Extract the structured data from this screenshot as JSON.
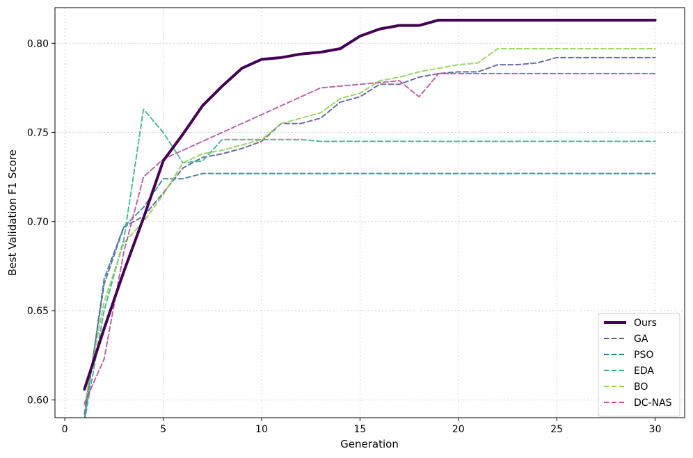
{
  "chart_data": {
    "type": "line",
    "xlabel": "Generation",
    "ylabel": "Best Validation F1 Score",
    "xlim": [
      -0.5,
      31.5
    ],
    "ylim": [
      0.59,
      0.82
    ],
    "xticks": [
      0,
      5,
      10,
      15,
      20,
      25,
      30
    ],
    "yticks": [
      0.6,
      0.65,
      0.7,
      0.75,
      0.8
    ],
    "xtick_labels": [
      "0",
      "5",
      "10",
      "15",
      "20",
      "25",
      "30"
    ],
    "ytick_labels": [
      "0.60",
      "0.65",
      "0.70",
      "0.75",
      "0.80"
    ],
    "grid": true,
    "legend_position": "lower-right",
    "x": [
      1,
      2,
      3,
      4,
      5,
      6,
      7,
      8,
      9,
      10,
      11,
      12,
      13,
      14,
      15,
      16,
      17,
      18,
      19,
      20,
      21,
      22,
      23,
      24,
      25,
      26,
      27,
      28,
      29,
      30
    ],
    "series": [
      {
        "name": "Ours",
        "color": "#440154",
        "style": "solid",
        "values": [
          0.606,
          0.64,
          0.672,
          0.702,
          0.734,
          0.749,
          0.765,
          0.776,
          0.786,
          0.791,
          0.792,
          0.794,
          0.795,
          0.797,
          0.804,
          0.808,
          0.81,
          0.81,
          0.813,
          0.813,
          0.813,
          0.813,
          0.813,
          0.813,
          0.813,
          0.813,
          0.813,
          0.813,
          0.813,
          0.813
        ]
      },
      {
        "name": "GA",
        "color": "#5a5d96",
        "style": "dashed",
        "values": [
          0.592,
          0.665,
          0.697,
          0.703,
          0.716,
          0.73,
          0.736,
          0.738,
          0.741,
          0.745,
          0.755,
          0.755,
          0.758,
          0.767,
          0.77,
          0.777,
          0.777,
          0.781,
          0.783,
          0.784,
          0.784,
          0.788,
          0.788,
          0.789,
          0.792,
          0.792,
          0.792,
          0.792,
          0.792,
          0.792
        ]
      },
      {
        "name": "PSO",
        "color": "#3a7d9a",
        "style": "dashed",
        "values": [
          0.589,
          0.668,
          0.697,
          0.708,
          0.724,
          0.724,
          0.727,
          0.727,
          0.727,
          0.727,
          0.727,
          0.727,
          0.727,
          0.727,
          0.727,
          0.727,
          0.727,
          0.727,
          0.727,
          0.727,
          0.727,
          0.727,
          0.727,
          0.727,
          0.727,
          0.727,
          0.727,
          0.727,
          0.727,
          0.727
        ]
      },
      {
        "name": "EDA",
        "color": "#3bb08f",
        "style": "dashed",
        "values": [
          0.588,
          0.65,
          0.69,
          0.763,
          0.75,
          0.733,
          0.734,
          0.746,
          0.746,
          0.746,
          0.746,
          0.746,
          0.745,
          0.745,
          0.745,
          0.745,
          0.745,
          0.745,
          0.745,
          0.745,
          0.745,
          0.745,
          0.745,
          0.745,
          0.745,
          0.745,
          0.745,
          0.745,
          0.745,
          0.745
        ]
      },
      {
        "name": "BO",
        "color": "#8fd15a",
        "style": "dashed",
        "values": [
          0.597,
          0.655,
          0.688,
          0.7,
          0.715,
          0.733,
          0.738,
          0.74,
          0.743,
          0.746,
          0.755,
          0.758,
          0.761,
          0.769,
          0.772,
          0.779,
          0.781,
          0.784,
          0.786,
          0.788,
          0.789,
          0.797,
          0.797,
          0.797,
          0.797,
          0.797,
          0.797,
          0.797,
          0.797,
          0.797
        ]
      },
      {
        "name": "DC-NAS",
        "color": "#b5539a",
        "style": "dashed",
        "values": [
          0.598,
          0.623,
          0.683,
          0.725,
          0.735,
          0.74,
          0.745,
          0.75,
          0.755,
          0.76,
          0.765,
          0.77,
          0.775,
          0.776,
          0.777,
          0.778,
          0.779,
          0.77,
          0.783,
          0.783,
          0.783,
          0.783,
          0.783,
          0.783,
          0.783,
          0.783,
          0.783,
          0.783,
          0.783,
          0.783
        ]
      }
    ]
  }
}
